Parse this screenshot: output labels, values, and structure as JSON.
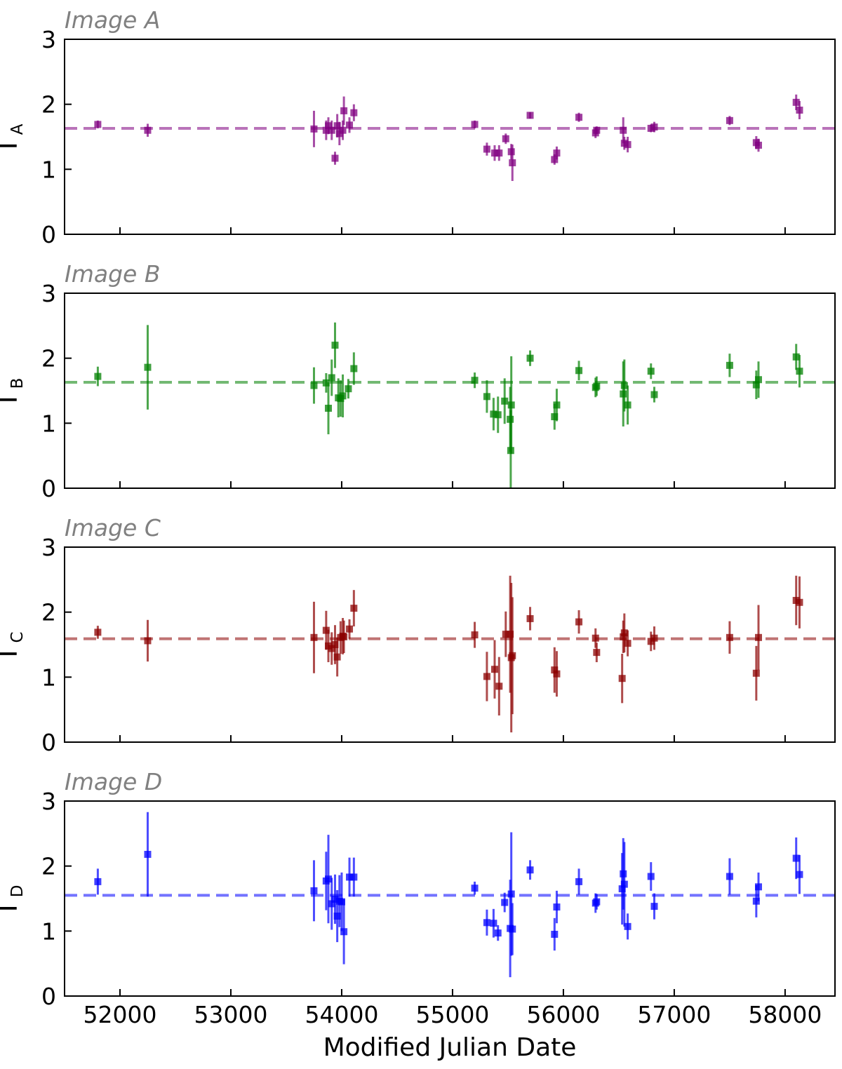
{
  "figure": {
    "xlabel": "Modified Julian Date",
    "xlim": [
      51500,
      58450
    ],
    "xticks": [
      52000,
      53000,
      54000,
      55000,
      56000,
      57000,
      58000
    ],
    "ylim": [
      0,
      3
    ],
    "yticks": [
      0,
      1,
      2,
      3
    ]
  },
  "chart_data": [
    {
      "type": "scatter",
      "title": "Image A",
      "ylabel": "Γ",
      "ylabel_sub": "A",
      "color": "#800080",
      "mean_line": 1.63,
      "points": [
        {
          "x": 51800,
          "y": 1.69,
          "err": 0.06
        },
        {
          "x": 52250,
          "y": 1.6,
          "err": 0.1
        },
        {
          "x": 53750,
          "y": 1.62,
          "err": 0.28
        },
        {
          "x": 53860,
          "y": 1.6,
          "err": 0.15
        },
        {
          "x": 53880,
          "y": 1.67,
          "err": 0.13
        },
        {
          "x": 53910,
          "y": 1.6,
          "err": 0.15
        },
        {
          "x": 53940,
          "y": 1.17,
          "err": 0.1
        },
        {
          "x": 53960,
          "y": 1.67,
          "err": 0.18
        },
        {
          "x": 53980,
          "y": 1.55,
          "err": 0.18
        },
        {
          "x": 54010,
          "y": 1.6,
          "err": 0.15
        },
        {
          "x": 54020,
          "y": 1.9,
          "err": 0.22
        },
        {
          "x": 54070,
          "y": 1.68,
          "err": 0.12
        },
        {
          "x": 54110,
          "y": 1.87,
          "err": 0.13
        },
        {
          "x": 55200,
          "y": 1.69,
          "err": 0.06
        },
        {
          "x": 55310,
          "y": 1.31,
          "err": 0.1
        },
        {
          "x": 55380,
          "y": 1.25,
          "err": 0.12
        },
        {
          "x": 55420,
          "y": 1.25,
          "err": 0.12
        },
        {
          "x": 55480,
          "y": 1.47,
          "err": 0.08
        },
        {
          "x": 55530,
          "y": 1.27,
          "err": 0.12
        },
        {
          "x": 55540,
          "y": 1.1,
          "err": 0.28
        },
        {
          "x": 55700,
          "y": 1.83,
          "err": 0.05
        },
        {
          "x": 55920,
          "y": 1.15,
          "err": 0.08
        },
        {
          "x": 55940,
          "y": 1.25,
          "err": 0.1
        },
        {
          "x": 56140,
          "y": 1.8,
          "err": 0.07
        },
        {
          "x": 56290,
          "y": 1.56,
          "err": 0.08
        },
        {
          "x": 56300,
          "y": 1.6,
          "err": 0.06
        },
        {
          "x": 56540,
          "y": 1.6,
          "err": 0.2
        },
        {
          "x": 56550,
          "y": 1.4,
          "err": 0.1
        },
        {
          "x": 56580,
          "y": 1.38,
          "err": 0.12
        },
        {
          "x": 56790,
          "y": 1.63,
          "err": 0.06
        },
        {
          "x": 56820,
          "y": 1.65,
          "err": 0.08
        },
        {
          "x": 57500,
          "y": 1.75,
          "err": 0.07
        },
        {
          "x": 57740,
          "y": 1.41,
          "err": 0.1
        },
        {
          "x": 57760,
          "y": 1.37,
          "err": 0.1
        },
        {
          "x": 58100,
          "y": 2.03,
          "err": 0.12
        },
        {
          "x": 58130,
          "y": 1.91,
          "err": 0.14
        }
      ]
    },
    {
      "type": "scatter",
      "title": "Image B",
      "ylabel": "Γ",
      "ylabel_sub": "B",
      "color": "#008000",
      "mean_line": 1.63,
      "points": [
        {
          "x": 51800,
          "y": 1.72,
          "err": 0.15
        },
        {
          "x": 52250,
          "y": 1.86,
          "err": 0.65
        },
        {
          "x": 53750,
          "y": 1.58,
          "err": 0.28
        },
        {
          "x": 53860,
          "y": 1.62,
          "err": 0.15
        },
        {
          "x": 53880,
          "y": 1.23,
          "err": 0.4
        },
        {
          "x": 53910,
          "y": 1.7,
          "err": 0.28
        },
        {
          "x": 53940,
          "y": 2.2,
          "err": 0.35
        },
        {
          "x": 53970,
          "y": 1.39,
          "err": 0.3
        },
        {
          "x": 53990,
          "y": 1.38,
          "err": 0.28
        },
        {
          "x": 54010,
          "y": 1.42,
          "err": 0.33
        },
        {
          "x": 54060,
          "y": 1.53,
          "err": 0.15
        },
        {
          "x": 54110,
          "y": 1.84,
          "err": 0.25
        },
        {
          "x": 55200,
          "y": 1.66,
          "err": 0.12
        },
        {
          "x": 55310,
          "y": 1.41,
          "err": 0.25
        },
        {
          "x": 55370,
          "y": 1.14,
          "err": 0.25
        },
        {
          "x": 55410,
          "y": 1.13,
          "err": 0.28
        },
        {
          "x": 55470,
          "y": 1.34,
          "err": 0.35
        },
        {
          "x": 55520,
          "y": 1.06,
          "err": 0.5
        },
        {
          "x": 55530,
          "y": 1.28,
          "err": 0.75
        },
        {
          "x": 55525,
          "y": 0.58,
          "err": 0.62
        },
        {
          "x": 55700,
          "y": 2.0,
          "err": 0.12
        },
        {
          "x": 55920,
          "y": 1.1,
          "err": 0.2
        },
        {
          "x": 55940,
          "y": 1.28,
          "err": 0.25
        },
        {
          "x": 56140,
          "y": 1.81,
          "err": 0.15
        },
        {
          "x": 56290,
          "y": 1.55,
          "err": 0.15
        },
        {
          "x": 56300,
          "y": 1.57,
          "err": 0.15
        },
        {
          "x": 56540,
          "y": 1.45,
          "err": 0.5
        },
        {
          "x": 56550,
          "y": 1.58,
          "err": 0.4
        },
        {
          "x": 56580,
          "y": 1.28,
          "err": 0.3
        },
        {
          "x": 56790,
          "y": 1.8,
          "err": 0.12
        },
        {
          "x": 56820,
          "y": 1.44,
          "err": 0.12
        },
        {
          "x": 57500,
          "y": 1.89,
          "err": 0.18
        },
        {
          "x": 57740,
          "y": 1.59,
          "err": 0.22
        },
        {
          "x": 57760,
          "y": 1.67,
          "err": 0.28
        },
        {
          "x": 58100,
          "y": 2.02,
          "err": 0.2
        },
        {
          "x": 58130,
          "y": 1.8,
          "err": 0.25
        }
      ]
    },
    {
      "type": "scatter",
      "title": "Image C",
      "ylabel": "Γ",
      "ylabel_sub": "C",
      "color": "#8b0000",
      "mean_line": 1.59,
      "points": [
        {
          "x": 51800,
          "y": 1.69,
          "err": 0.1
        },
        {
          "x": 52250,
          "y": 1.56,
          "err": 0.32
        },
        {
          "x": 53750,
          "y": 1.61,
          "err": 0.55
        },
        {
          "x": 53860,
          "y": 1.72,
          "err": 0.3
        },
        {
          "x": 53880,
          "y": 1.48,
          "err": 0.25
        },
        {
          "x": 53910,
          "y": 1.44,
          "err": 0.25
        },
        {
          "x": 53940,
          "y": 1.5,
          "err": 0.3
        },
        {
          "x": 53960,
          "y": 1.31,
          "err": 0.3
        },
        {
          "x": 53990,
          "y": 1.61,
          "err": 0.25
        },
        {
          "x": 54010,
          "y": 1.63,
          "err": 0.28
        },
        {
          "x": 54020,
          "y": 1.62,
          "err": 0.25
        },
        {
          "x": 54070,
          "y": 1.74,
          "err": 0.15
        },
        {
          "x": 54110,
          "y": 2.06,
          "err": 0.28
        },
        {
          "x": 55200,
          "y": 1.65,
          "err": 0.2
        },
        {
          "x": 55310,
          "y": 1.01,
          "err": 0.38
        },
        {
          "x": 55380,
          "y": 1.12,
          "err": 0.45
        },
        {
          "x": 55420,
          "y": 0.86,
          "err": 0.45
        },
        {
          "x": 55480,
          "y": 1.66,
          "err": 0.35
        },
        {
          "x": 55520,
          "y": 1.66,
          "err": 0.9
        },
        {
          "x": 55530,
          "y": 1.3,
          "err": 1.15
        },
        {
          "x": 55540,
          "y": 1.33,
          "err": 0.9
        },
        {
          "x": 55700,
          "y": 1.9,
          "err": 0.18
        },
        {
          "x": 55920,
          "y": 1.11,
          "err": 0.35
        },
        {
          "x": 55940,
          "y": 1.05,
          "err": 0.35
        },
        {
          "x": 56140,
          "y": 1.85,
          "err": 0.18
        },
        {
          "x": 56290,
          "y": 1.6,
          "err": 0.15
        },
        {
          "x": 56300,
          "y": 1.38,
          "err": 0.15
        },
        {
          "x": 56530,
          "y": 0.98,
          "err": 0.38
        },
        {
          "x": 56540,
          "y": 1.62,
          "err": 0.25
        },
        {
          "x": 56550,
          "y": 1.68,
          "err": 0.3
        },
        {
          "x": 56580,
          "y": 1.52,
          "err": 0.2
        },
        {
          "x": 56790,
          "y": 1.55,
          "err": 0.15
        },
        {
          "x": 56820,
          "y": 1.6,
          "err": 0.18
        },
        {
          "x": 57500,
          "y": 1.61,
          "err": 0.25
        },
        {
          "x": 57740,
          "y": 1.06,
          "err": 0.42
        },
        {
          "x": 57760,
          "y": 1.61,
          "err": 0.5
        },
        {
          "x": 58100,
          "y": 2.18,
          "err": 0.38
        },
        {
          "x": 58130,
          "y": 2.15,
          "err": 0.4
        }
      ]
    },
    {
      "type": "scatter",
      "title": "Image D",
      "ylabel": "Γ",
      "ylabel_sub": "D",
      "color": "#0000ff",
      "mean_line": 1.55,
      "points": [
        {
          "x": 51800,
          "y": 1.76,
          "err": 0.2
        },
        {
          "x": 52250,
          "y": 2.18,
          "err": 0.65
        },
        {
          "x": 53750,
          "y": 1.62,
          "err": 0.47
        },
        {
          "x": 53860,
          "y": 1.77,
          "err": 0.45
        },
        {
          "x": 53880,
          "y": 1.8,
          "err": 0.68
        },
        {
          "x": 53910,
          "y": 1.42,
          "err": 0.4
        },
        {
          "x": 53940,
          "y": 1.49,
          "err": 0.38
        },
        {
          "x": 53960,
          "y": 1.23,
          "err": 0.4
        },
        {
          "x": 53980,
          "y": 1.46,
          "err": 0.4
        },
        {
          "x": 54000,
          "y": 1.45,
          "err": 0.45
        },
        {
          "x": 54020,
          "y": 0.99,
          "err": 0.5
        },
        {
          "x": 54070,
          "y": 1.83,
          "err": 0.3
        },
        {
          "x": 54110,
          "y": 1.83,
          "err": 0.3
        },
        {
          "x": 55200,
          "y": 1.66,
          "err": 0.1
        },
        {
          "x": 55310,
          "y": 1.13,
          "err": 0.2
        },
        {
          "x": 55370,
          "y": 1.12,
          "err": 0.22
        },
        {
          "x": 55410,
          "y": 0.97,
          "err": 0.12
        },
        {
          "x": 55470,
          "y": 1.44,
          "err": 0.15
        },
        {
          "x": 55520,
          "y": 1.04,
          "err": 0.75
        },
        {
          "x": 55530,
          "y": 1.57,
          "err": 0.95
        },
        {
          "x": 55540,
          "y": 1.03,
          "err": 0.4
        },
        {
          "x": 55700,
          "y": 1.94,
          "err": 0.15
        },
        {
          "x": 55920,
          "y": 0.95,
          "err": 0.25
        },
        {
          "x": 55940,
          "y": 1.37,
          "err": 0.25
        },
        {
          "x": 56140,
          "y": 1.76,
          "err": 0.2
        },
        {
          "x": 56290,
          "y": 1.43,
          "err": 0.15
        },
        {
          "x": 56300,
          "y": 1.45,
          "err": 0.12
        },
        {
          "x": 56530,
          "y": 1.65,
          "err": 0.55
        },
        {
          "x": 56540,
          "y": 1.88,
          "err": 0.55
        },
        {
          "x": 56550,
          "y": 1.72,
          "err": 0.65
        },
        {
          "x": 56580,
          "y": 1.07,
          "err": 0.2
        },
        {
          "x": 56790,
          "y": 1.84,
          "err": 0.22
        },
        {
          "x": 56820,
          "y": 1.38,
          "err": 0.2
        },
        {
          "x": 57500,
          "y": 1.84,
          "err": 0.28
        },
        {
          "x": 57740,
          "y": 1.46,
          "err": 0.25
        },
        {
          "x": 57760,
          "y": 1.68,
          "err": 0.22
        },
        {
          "x": 58100,
          "y": 2.12,
          "err": 0.32
        },
        {
          "x": 58130,
          "y": 1.87,
          "err": 0.3
        }
      ]
    }
  ]
}
